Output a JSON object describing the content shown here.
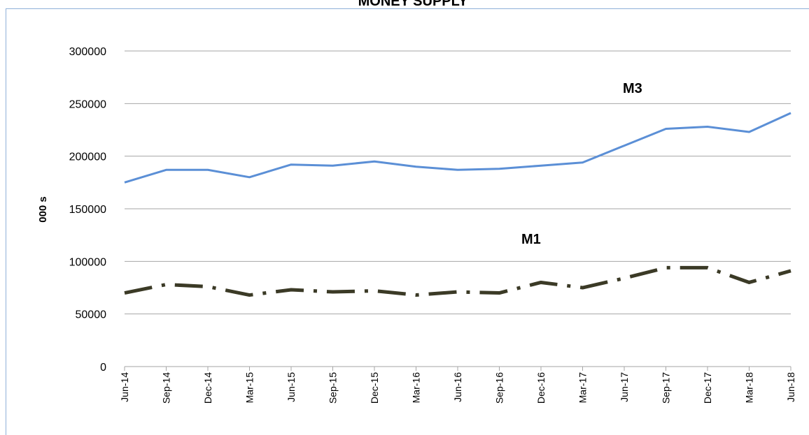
{
  "chart_data": {
    "type": "line",
    "title": "MONEY SUPPLY",
    "y_label": "000 s",
    "categories": [
      "Jun-14",
      "Sep-14",
      "Dec-14",
      "Mar-15",
      "Jun-15",
      "Sep-15",
      "Dec-15",
      "Mar-16",
      "Jun-16",
      "Sep-16",
      "Dec-16",
      "Mar-17",
      "Jun-17",
      "Sep-17",
      "Dec-17",
      "Mar-18",
      "Jun-18"
    ],
    "series": [
      {
        "name": "M3",
        "color": "#5b8fd6",
        "style": "solid",
        "values": [
          175000,
          187000,
          187000,
          180000,
          192000,
          191000,
          195000,
          190000,
          187000,
          188000,
          191000,
          194000,
          210000,
          226000,
          228000,
          223000,
          241000
        ]
      },
      {
        "name": "M1",
        "color": "#3b3a26",
        "style": "dash-dot",
        "values": [
          70000,
          78000,
          76000,
          68000,
          73000,
          71000,
          72000,
          68000,
          71000,
          70000,
          80000,
          75000,
          84000,
          94000,
          94000,
          80000,
          91000
        ]
      }
    ],
    "ylim": [
      0,
      300000
    ],
    "yticks": [
      0,
      50000,
      100000,
      150000,
      200000,
      250000,
      300000
    ],
    "grid": true
  }
}
